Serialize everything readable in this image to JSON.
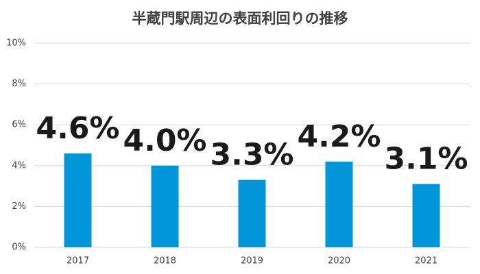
{
  "chart_data": {
    "type": "bar",
    "title": "半蔵門駅周辺の表面利回りの推移",
    "categories": [
      "2017",
      "2018",
      "2019",
      "2020",
      "2021"
    ],
    "values": [
      4.6,
      4.0,
      3.3,
      4.2,
      3.1
    ],
    "value_labels": [
      "4.6%",
      "4.0%",
      "3.3%",
      "4.2%",
      "3.1%"
    ],
    "color": "#0096d9",
    "ylim": [
      0,
      10
    ],
    "yticks": [
      {
        "value": 0,
        "label": "0%"
      },
      {
        "value": 2,
        "label": "2%"
      },
      {
        "value": 4,
        "label": "4%"
      },
      {
        "value": 6,
        "label": "6%"
      },
      {
        "value": 8,
        "label": "8%"
      },
      {
        "value": 10,
        "label": "10%"
      }
    ],
    "grid": true
  }
}
